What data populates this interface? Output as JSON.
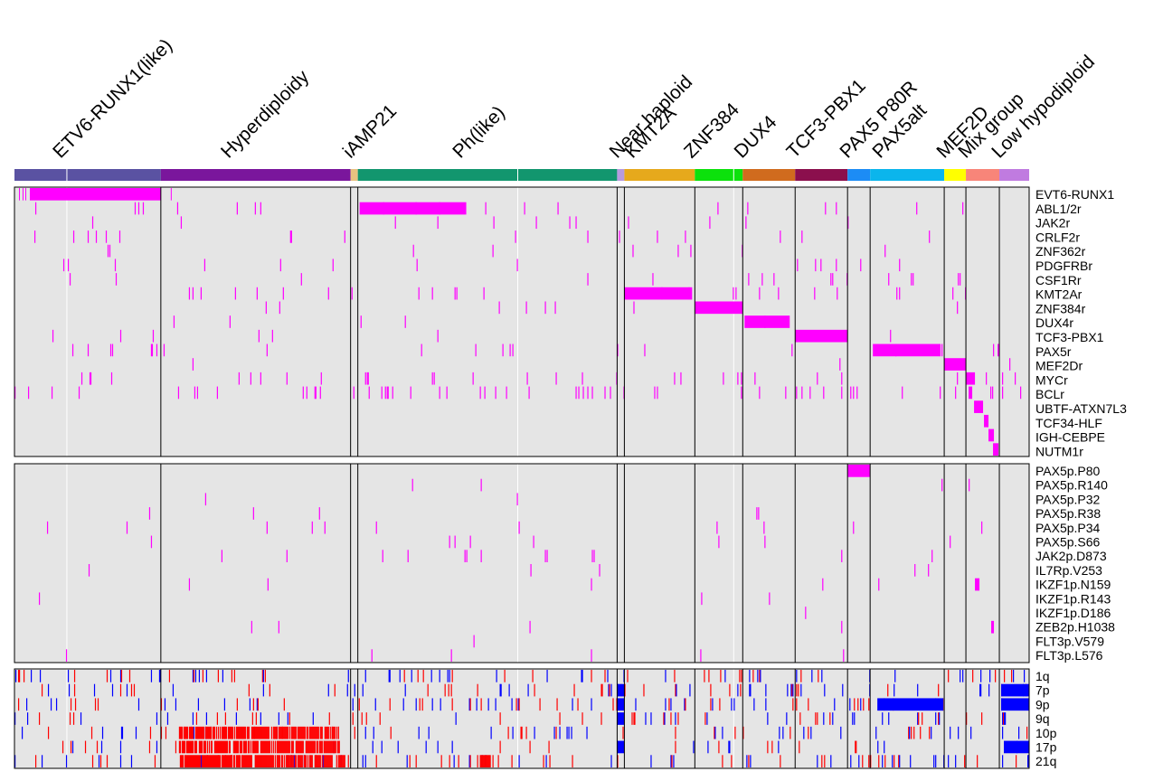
{
  "chart_data": {
    "type": "heatmap",
    "colors": {
      "background": "#e5e5e5",
      "fusion": "#ff00ff",
      "mutation": "#ff00ff",
      "gain": "#ff0000",
      "loss": "#0000ff",
      "border": "#000000"
    },
    "groups": [
      {
        "name": "ETV6-RUNX1(like)",
        "span": [
          0,
          162
        ],
        "color": "#5a52a2",
        "segments": [
          0,
          58,
          162
        ]
      },
      {
        "name": "Hyperdiploidy",
        "span": [
          162,
          372
        ],
        "color": "#7a169c"
      },
      {
        "name": "iAMP21",
        "span": [
          372,
          380
        ],
        "color": "#e8c280"
      },
      {
        "name": "Ph(like)",
        "span": [
          380,
          667
        ],
        "color": "#12966e",
        "segments": [
          380,
          557,
          667
        ]
      },
      {
        "name": "Near haploid",
        "span": [
          667,
          675
        ],
        "color": "#b79adf"
      },
      {
        "name": "KMT2A",
        "span": [
          675,
          753
        ],
        "color": "#e6a91c"
      },
      {
        "name": "ZNF384",
        "span": [
          753,
          806
        ],
        "color": "#0ce10c",
        "segments": [
          753,
          796,
          806
        ]
      },
      {
        "name": "DUX4",
        "span": [
          806,
          864
        ],
        "color": "#d06b1e"
      },
      {
        "name": "TCF3-PBX1",
        "span": [
          864,
          922
        ],
        "color": "#8b0f4d"
      },
      {
        "name": "PAX5 P80R",
        "span": [
          922,
          947
        ],
        "color": "#1c8cf5"
      },
      {
        "name": "PAX5alt",
        "span": [
          947,
          1029
        ],
        "color": "#0bb5ec"
      },
      {
        "name": "MEF2D",
        "span": [
          1029,
          1053
        ],
        "color": "#ffff00"
      },
      {
        "name": "Mix group",
        "span": [
          1053,
          1090
        ],
        "color": "#f88579"
      },
      {
        "name": "Low hypodiploid",
        "span": [
          1090,
          1123
        ],
        "color": "#c07be0"
      }
    ],
    "panels": [
      {
        "name": "fusions",
        "rows": [
          "EVT6-RUNX1",
          "ABL1/2r",
          "JAK2r",
          "CRLF2r",
          "ZNF362r",
          "PDGFRBr",
          "CSF1Rr",
          "KMT2Ar",
          "ZNF384r",
          "DUX4r",
          "TCF3-PBX1",
          "PAX5r",
          "MEF2Dr",
          "MYCr",
          "BCLr",
          "UBTF-ATXN7L3",
          "TCF34-HLF",
          "IGH-CEBPE",
          "NUTM1r"
        ],
        "blocks": [
          {
            "row": 0,
            "from": 17,
            "to": 162
          },
          {
            "row": 0,
            "from": 5,
            "to": 6
          },
          {
            "row": 0,
            "from": 9,
            "to": 10
          },
          {
            "row": 0,
            "from": 12,
            "to": 13
          },
          {
            "row": 0,
            "from": 173,
            "to": 174
          },
          {
            "row": 1,
            "from": 382,
            "to": 500
          },
          {
            "row": 7,
            "from": 675,
            "to": 750
          },
          {
            "row": 8,
            "from": 753,
            "to": 806
          },
          {
            "row": 9,
            "from": 808,
            "to": 858
          },
          {
            "row": 10,
            "from": 864,
            "to": 922
          },
          {
            "row": 11,
            "from": 950,
            "to": 1025
          },
          {
            "row": 12,
            "from": 1029,
            "to": 1053
          },
          {
            "row": 13,
            "from": 1053,
            "to": 1063
          },
          {
            "row": 14,
            "from": 1056,
            "to": 1060
          },
          {
            "row": 15,
            "from": 1062,
            "to": 1072
          },
          {
            "row": 16,
            "from": 1073,
            "to": 1078
          },
          {
            "row": 17,
            "from": 1078,
            "to": 1084
          },
          {
            "row": 18,
            "from": 1083,
            "to": 1089
          }
        ],
        "density": [
          0.0,
          0.012,
          0.006,
          0.018,
          0.008,
          0.012,
          0.008,
          0.018,
          0.006,
          0.006,
          0.012,
          0.018,
          0.006,
          0.03,
          0.035,
          0.0,
          0.0,
          0.0,
          0.0
        ]
      },
      {
        "name": "mutations",
        "rows": [
          "PAX5p.P80",
          "PAX5p.R140",
          "PAX5p.P32",
          "PAX5p.R38",
          "PAX5p.P34",
          "PAX5p.S66",
          "JAK2p.D873",
          "IL7Rp.V253",
          "IKZF1p.N159",
          "IKZF1p.R143",
          "IKZF1p.D186",
          "ZEB2p.H1038",
          "FLT3p.V579",
          "FLT3p.L576"
        ],
        "blocks": [
          {
            "row": 0,
            "from": 922,
            "to": 947
          },
          {
            "row": 8,
            "from": 1063,
            "to": 1068
          },
          {
            "row": 11,
            "from": 1081,
            "to": 1084
          }
        ],
        "density": [
          0.0,
          0.006,
          0.006,
          0.008,
          0.008,
          0.008,
          0.006,
          0.003,
          0.003,
          0.003,
          0.004,
          0.006,
          0.003,
          0.004
        ]
      },
      {
        "name": "copy-number",
        "rows": [
          "1q",
          "7p",
          "9p",
          "9q",
          "10p",
          "17p",
          "21q"
        ],
        "blocks": [
          {
            "row": 1,
            "from": 667,
            "to": 675,
            "kind": "loss"
          },
          {
            "row": 2,
            "from": 667,
            "to": 675,
            "kind": "loss"
          },
          {
            "row": 3,
            "from": 667,
            "to": 675,
            "kind": "loss"
          },
          {
            "row": 5,
            "from": 667,
            "to": 675,
            "kind": "loss"
          },
          {
            "row": 1,
            "from": 1092,
            "to": 1123,
            "kind": "loss"
          },
          {
            "row": 2,
            "from": 1092,
            "to": 1123,
            "kind": "loss"
          },
          {
            "row": 5,
            "from": 1095,
            "to": 1123,
            "kind": "loss"
          },
          {
            "row": 2,
            "from": 955,
            "to": 1028,
            "kind": "loss"
          },
          {
            "row": 4,
            "from": 182,
            "to": 360,
            "kind": "gain"
          },
          {
            "row": 5,
            "from": 182,
            "to": 360,
            "kind": "gain"
          },
          {
            "row": 6,
            "from": 182,
            "to": 372,
            "kind": "gain"
          },
          {
            "row": 6,
            "from": 515,
            "to": 528,
            "kind": "gain"
          }
        ],
        "density": [
          0.05,
          0.06,
          0.06,
          0.05,
          0.05,
          0.04,
          0.08
        ]
      }
    ]
  }
}
